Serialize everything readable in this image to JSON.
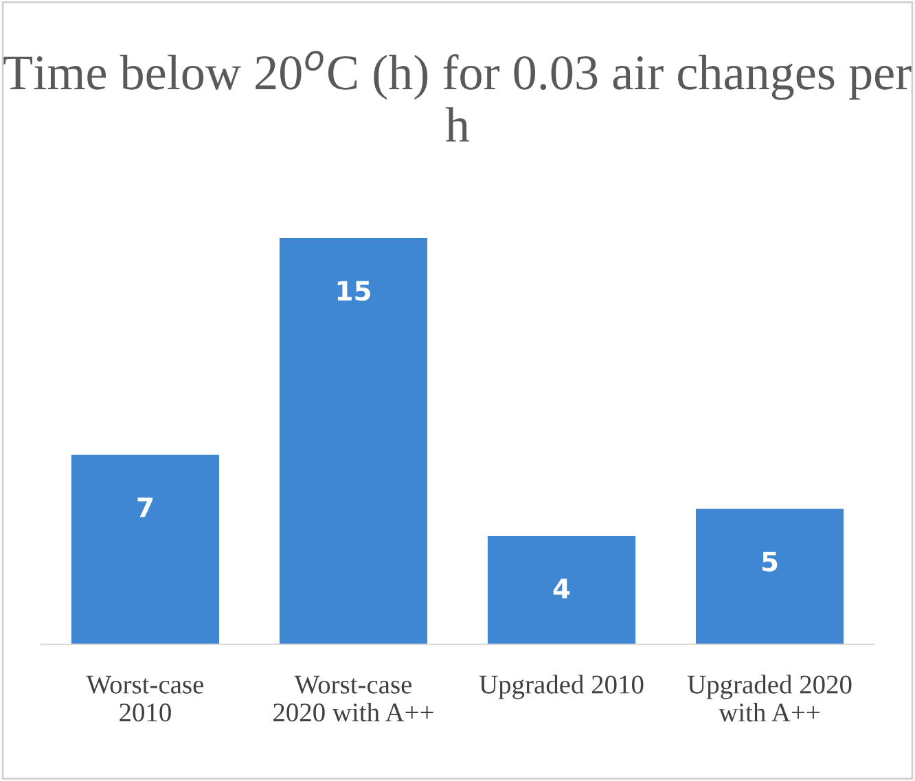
{
  "chart_data": {
    "type": "bar",
    "title": "Time below 20$^{o}$C (h) for 0.03 air changes per h",
    "categories": [
      "Worst-case\n2010",
      "Worst-case\n2020 with A++",
      "Upgraded 2010",
      "Upgraded 2020\nwith A++"
    ],
    "values": [
      7,
      15,
      4,
      5
    ],
    "color": "#3f87d3",
    "data_labels": true,
    "grid": false,
    "legend": false
  }
}
